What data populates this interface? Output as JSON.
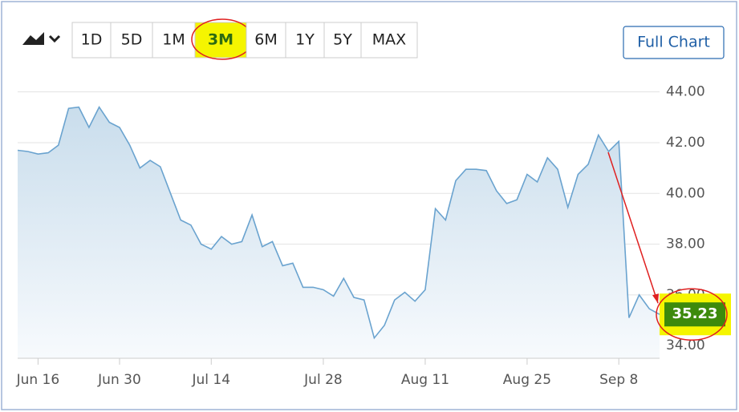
{
  "chart_data": {
    "type": "area",
    "range_buttons": [
      "1D",
      "5D",
      "1M",
      "3M",
      "6M",
      "1Y",
      "5Y",
      "MAX"
    ],
    "selected_range": 3,
    "full_chart_button": "Full Chart",
    "color": "#6aa3cf",
    "grid": true,
    "categories": [
      null,
      null,
      "Jun 16",
      null,
      null,
      null,
      null,
      null,
      null,
      null,
      "Jun 30",
      null,
      null,
      null,
      null,
      null,
      null,
      null,
      null,
      "Jul 14",
      null,
      null,
      null,
      null,
      null,
      null,
      null,
      null,
      null,
      null,
      "Jul 28",
      null,
      null,
      null,
      null,
      null,
      null,
      null,
      null,
      null,
      "Aug 11",
      null,
      null,
      null,
      null,
      null,
      null,
      null,
      null,
      null,
      "Aug 25",
      null,
      null,
      null,
      null,
      null,
      null,
      null,
      null,
      "Sep 8",
      null,
      null,
      null,
      null
    ],
    "values": [
      41.7,
      41.65,
      41.55,
      41.6,
      41.9,
      43.35,
      43.4,
      42.6,
      43.4,
      42.8,
      42.6,
      41.9,
      41.0,
      41.3,
      41.05,
      40.0,
      38.95,
      38.75,
      38.0,
      37.8,
      38.3,
      38.0,
      38.1,
      39.15,
      37.9,
      38.1,
      37.15,
      37.25,
      36.3,
      36.3,
      36.2,
      35.95,
      36.65,
      35.9,
      35.8,
      34.3,
      34.8,
      35.8,
      36.1,
      35.75,
      36.2,
      39.4,
      38.95,
      40.5,
      40.95,
      40.95,
      40.9,
      40.1,
      39.6,
      39.75,
      40.75,
      40.45,
      41.4,
      40.95,
      39.45,
      40.75,
      41.15,
      42.3,
      41.65,
      42.05,
      35.1,
      36.0,
      35.45,
      35.23
    ],
    "ylim": [
      33.5,
      45
    ],
    "yticks": [
      {
        "value": 34,
        "label": "34.00"
      },
      {
        "value": 36,
        "label": "36.00"
      },
      {
        "value": 38,
        "label": "38.00"
      },
      {
        "value": 40,
        "label": "40.00"
      },
      {
        "value": 42,
        "label": "42.00"
      },
      {
        "value": 44,
        "label": "44.00"
      }
    ]
  }
}
